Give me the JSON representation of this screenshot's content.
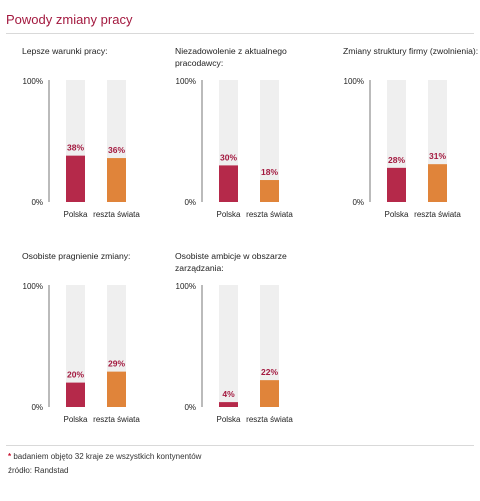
{
  "header": {
    "title": "Powody zmiany pracy"
  },
  "colors": {
    "poland": "#b5294a",
    "world": "#e0843a",
    "track": "#efefef",
    "accent": "#a3193f"
  },
  "footer": {
    "star": "*",
    "note": "badaniem objęto 32 kraje ze wszystkich kontynentów",
    "source": "źródło: Randstad"
  },
  "chart_data": [
    {
      "type": "bar",
      "title": "Lepsze warunki pracy:",
      "categories": [
        "Polska",
        "reszta świata"
      ],
      "values": [
        38,
        36
      ],
      "labels": [
        "38%",
        "36%"
      ],
      "ylim": [
        0,
        100
      ],
      "yticks": [
        "100%",
        "0%"
      ]
    },
    {
      "type": "bar",
      "title": "Niezadowolenie z aktualnego pracodawcy:",
      "categories": [
        "Polska",
        "reszta świata"
      ],
      "values": [
        30,
        18
      ],
      "labels": [
        "30%",
        "18%"
      ],
      "ylim": [
        0,
        100
      ],
      "yticks": [
        "100%",
        "0%"
      ]
    },
    {
      "type": "bar",
      "title": "Zmiany struktury firmy (zwolnienia):",
      "categories": [
        "Polska",
        "reszta świata"
      ],
      "values": [
        28,
        31
      ],
      "labels": [
        "28%",
        "31%"
      ],
      "ylim": [
        0,
        100
      ],
      "yticks": [
        "100%",
        "0%"
      ]
    },
    {
      "type": "bar",
      "title": "Osobiste pragnienie zmiany:",
      "categories": [
        "Polska",
        "reszta świata"
      ],
      "values": [
        20,
        29
      ],
      "labels": [
        "20%",
        "29%"
      ],
      "ylim": [
        0,
        100
      ],
      "yticks": [
        "100%",
        "0%"
      ]
    },
    {
      "type": "bar",
      "title": "Osobiste ambicje w obszarze zarządzania:",
      "categories": [
        "Polska",
        "reszta świata"
      ],
      "values": [
        4,
        22
      ],
      "labels": [
        "4%",
        "22%"
      ],
      "ylim": [
        0,
        100
      ],
      "yticks": [
        "100%",
        "0%"
      ]
    }
  ]
}
